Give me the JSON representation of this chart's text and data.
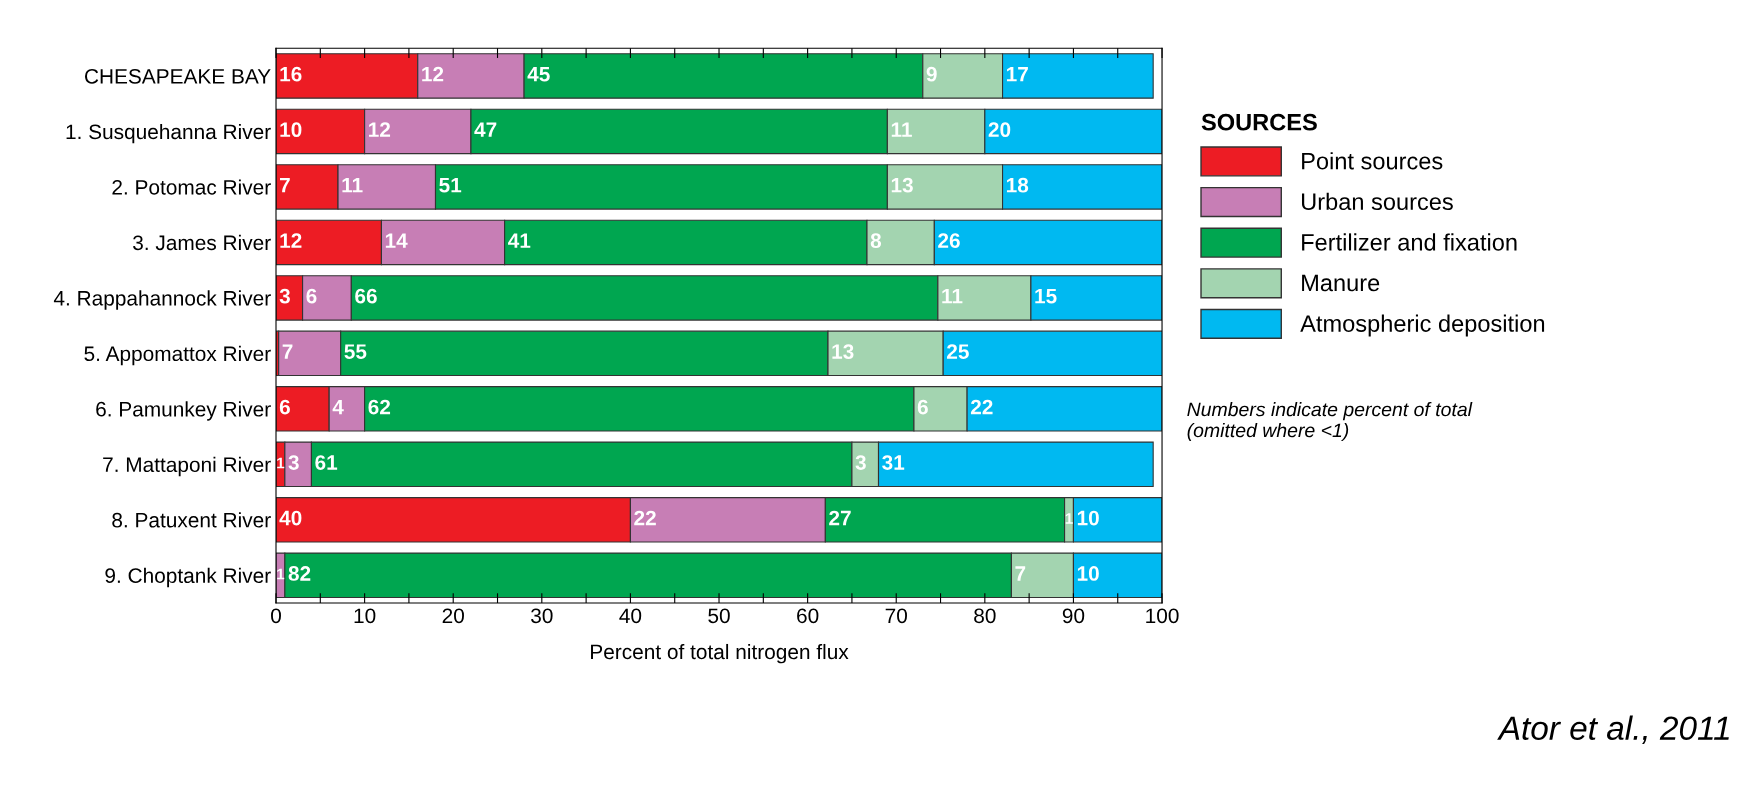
{
  "chart_data": {
    "type": "bar",
    "orientation": "horizontal",
    "stacked": true,
    "categories": [
      "CHESAPEAKE BAY",
      "1. Susquehanna River",
      "2. Potomac River",
      "3. James River",
      "4. Rappahannock River",
      "5. Appomattox River",
      "6. Pamunkey River",
      "7. Mattaponi River",
      "8. Patuxent River",
      "9. Choptank River"
    ],
    "series": [
      {
        "name": "Point sources",
        "color": "#ed1c24",
        "values": [
          16,
          10,
          7,
          11.9,
          3,
          0.3,
          6,
          1,
          40,
          0
        ],
        "value_labels": [
          "16",
          "10",
          "7",
          "12",
          "3",
          null,
          "6",
          "1",
          "40",
          null
        ]
      },
      {
        "name": "Urban sources",
        "color": "#c77eb5",
        "values": [
          12,
          12,
          11,
          13.9,
          5.5,
          7,
          4,
          3,
          22,
          1
        ],
        "value_labels": [
          "12",
          "12",
          "11",
          "14",
          "6",
          "7",
          "4",
          "3",
          "22",
          "1"
        ]
      },
      {
        "name": "Fertilizer and fixation",
        "color": "#00a650",
        "values": [
          45,
          47,
          51,
          40.9,
          66.2,
          55,
          62,
          61,
          27,
          82
        ],
        "value_labels": [
          "45",
          "47",
          "51",
          "41",
          "66",
          "55",
          "62",
          "61",
          "27",
          "82"
        ]
      },
      {
        "name": "Manure",
        "color": "#a3d4b0",
        "values": [
          9,
          11,
          13,
          7.6,
          10.5,
          13,
          6,
          3,
          1,
          7
        ],
        "value_labels": [
          "9",
          "11",
          "13",
          "8",
          "11",
          "13",
          "6",
          "3",
          "1",
          "7"
        ]
      },
      {
        "name": "Atmospheric deposition",
        "color": "#00b9f1",
        "values": [
          17,
          20,
          18,
          25.7,
          14.8,
          25,
          22,
          31,
          10,
          10
        ],
        "value_labels": [
          "17",
          "20",
          "18",
          "26",
          "15",
          "25",
          "22",
          "31",
          "10",
          "10"
        ]
      }
    ],
    "xlim": [
      0,
      100
    ],
    "xticks": [
      0,
      {
        "value": 5,
        "label": null
      },
      10,
      {
        "value": 15,
        "label": null
      },
      20,
      {
        "value": 25,
        "label": null
      },
      30,
      {
        "value": 35,
        "label": null
      },
      40,
      {
        "value": 45,
        "label": null
      },
      50,
      {
        "value": 55,
        "label": null
      },
      60,
      {
        "value": 65,
        "label": null
      },
      70,
      {
        "value": 75,
        "label": null
      },
      80,
      {
        "value": 85,
        "label": null
      },
      90,
      {
        "value": 95,
        "label": null
      },
      100
    ],
    "xlabel": "Percent of total nitrogen flux",
    "legend": "right",
    "legend_title": "SOURCES",
    "grid": false,
    "annotations": [
      "Numbers indicate percent of total\n(omitted where <1)",
      "Ator et al., 2011"
    ]
  }
}
